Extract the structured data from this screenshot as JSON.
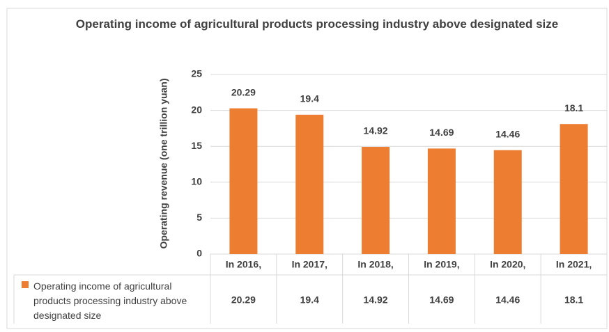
{
  "chart_data": {
    "type": "bar",
    "title": "Operating income of agricultural products processing industry above designated size",
    "y_label": "Operating revenue (one trillion yuan)",
    "categories": [
      "In 2016,",
      "In 2017,",
      "In 2018,",
      "In 2019,",
      "In 2020,",
      "In 2021,"
    ],
    "series": [
      {
        "name": "Operating income of agricultural products processing industry above designated size",
        "color": "#ed7d31",
        "values": [
          20.29,
          19.4,
          14.92,
          14.69,
          14.46,
          18.1
        ]
      }
    ],
    "ylim": [
      0,
      25
    ],
    "yticks": [
      0,
      5,
      10,
      15,
      20,
      25
    ],
    "grid": true,
    "data_labels": true,
    "data_table": true
  }
}
